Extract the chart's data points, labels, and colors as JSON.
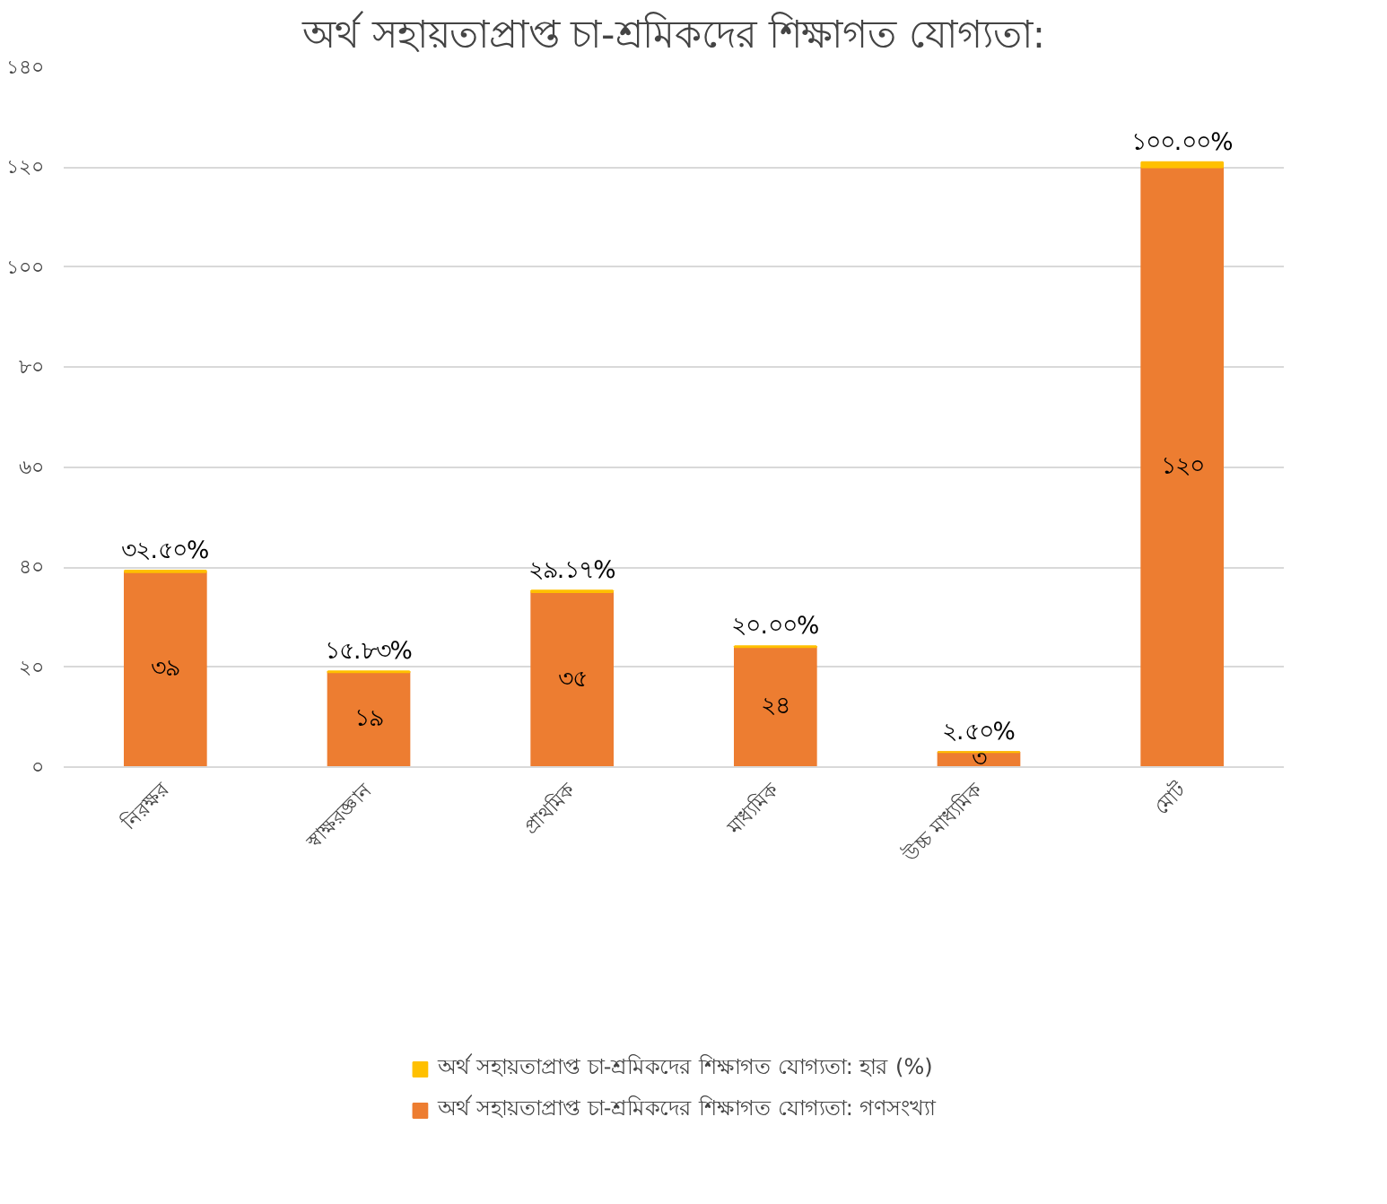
{
  "chart_data": {
    "type": "bar",
    "title": "অর্থ সহায়তাপ্রাপ্ত চা-শ্রমিকদের শিক্ষাগত যোগ্যতা:",
    "stacked": true,
    "categories": [
      "নিরক্ষর",
      "স্বাক্ষরজ্ঞান",
      "প্রাথমিক",
      "মাধ্যমিক",
      "উচ্চ মাধ্যমিক",
      "মোট"
    ],
    "series": [
      {
        "name": "অর্থ সহায়তাপ্রাপ্ত চা-শ্রমিকদের শিক্ষাগত যোগ্যতা: গণসংখ্যা",
        "color": "#ed7d31",
        "values": [
          39,
          19,
          35,
          24,
          3,
          120
        ],
        "value_labels": [
          "৩৯",
          "১৯",
          "৩৫",
          "২৪",
          "৩",
          "১২০"
        ]
      },
      {
        "name": "অর্থ সহায়তাপ্রাপ্ত চা-শ্রমিকদের শিক্ষাগত যোগ্যতা: হার (%)",
        "color": "#ffc000",
        "values": [
          0.325,
          0.1583,
          0.2917,
          0.2,
          0.025,
          1.0
        ],
        "value_labels": [
          "৩২.৫০%",
          "১৫.৮৩%",
          "২৯.১৭%",
          "২০.০০%",
          "২.৫০%",
          "১০০.০০%"
        ]
      }
    ],
    "ylim": [
      0,
      140
    ],
    "yticks": [
      {
        "value": 0,
        "label": "০"
      },
      {
        "value": 20,
        "label": "২০"
      },
      {
        "value": 40,
        "label": "৪০"
      },
      {
        "value": 60,
        "label": "৬০"
      },
      {
        "value": 80,
        "label": "৮০"
      },
      {
        "value": 100,
        "label": "১০০"
      },
      {
        "value": 120,
        "label": "১২০"
      },
      {
        "value": 140,
        "label": "১৪০"
      }
    ],
    "grid": "y",
    "legend": "bottom"
  }
}
